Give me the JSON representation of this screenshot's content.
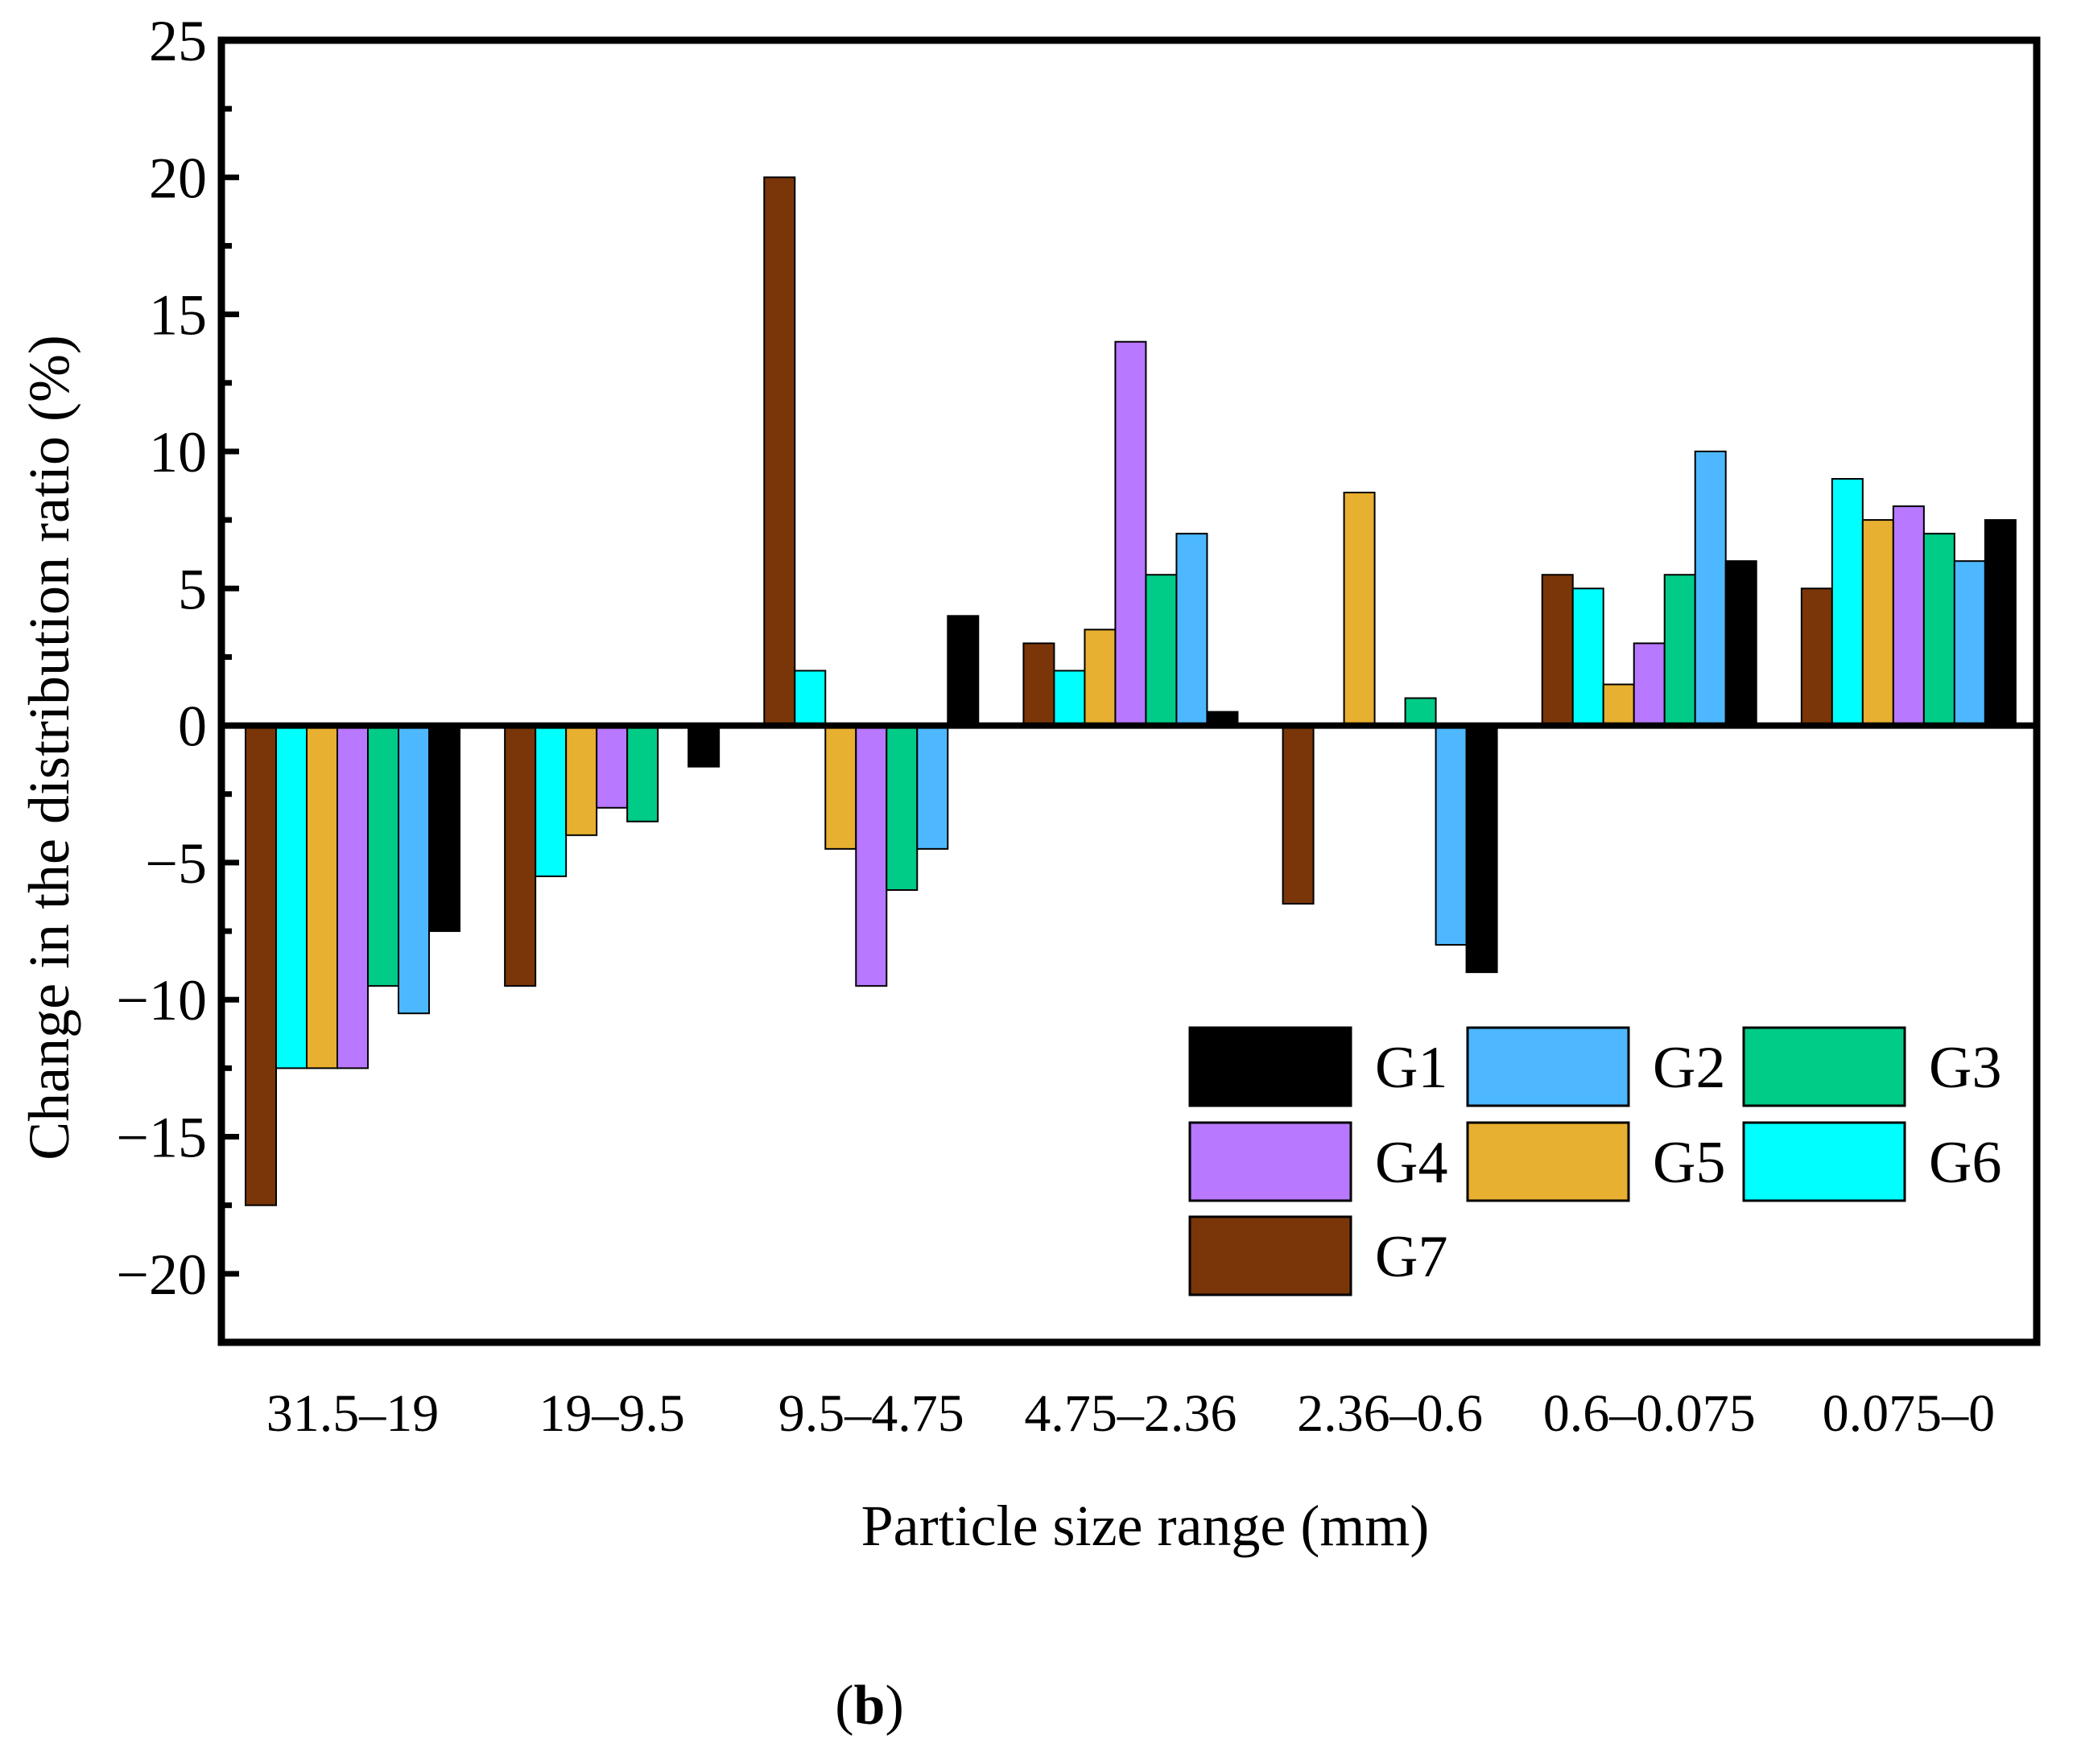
{
  "chart_data": {
    "type": "bar",
    "title": "",
    "xlabel": "Particle size range (mm)",
    "ylabel": "Change in the distribution ratio (%)",
    "ylim": [
      -22.5,
      25
    ],
    "yticks": [
      -20,
      -15,
      -10,
      -5,
      0,
      5,
      10,
      15,
      20,
      25
    ],
    "ytick_labels": [
      "−20",
      "−15",
      "−10",
      "−5",
      "0",
      "5",
      "10",
      "15",
      "20",
      "25"
    ],
    "grid": false,
    "legend_position": "bottom-right",
    "categories": [
      "31.5–19",
      "19–9.5",
      "9.5–4.75",
      "4.75–2.36",
      "2.36–0.6",
      "0.6–0.075",
      "0.075–0"
    ],
    "series": [
      {
        "name": "G7",
        "color": "#7a3608",
        "values": [
          -17.5,
          -9.5,
          20,
          3,
          -6.5,
          5.5,
          5
        ]
      },
      {
        "name": "G6",
        "color": "#00ffff",
        "values": [
          -12.5,
          -5.5,
          2,
          2,
          0,
          5,
          9
        ]
      },
      {
        "name": "G5",
        "color": "#e8b030",
        "values": [
          -12.5,
          -4,
          -4.5,
          3.5,
          8.5,
          1.5,
          7.5
        ]
      },
      {
        "name": "G4",
        "color": "#b878ff",
        "values": [
          -12.5,
          -3,
          -9.5,
          14,
          0,
          3,
          8
        ]
      },
      {
        "name": "G3",
        "color": "#00cc88",
        "values": [
          -9.5,
          -3.5,
          -6,
          5.5,
          1,
          5.5,
          7
        ]
      },
      {
        "name": "G2",
        "color": "#4db8ff",
        "values": [
          -10.5,
          0,
          -4.5,
          7,
          -8,
          10,
          6
        ]
      },
      {
        "name": "G1",
        "color": "#000000",
        "values": [
          -7.5,
          -1.5,
          4,
          0.5,
          -9,
          6,
          7.5
        ]
      }
    ],
    "legend_order": [
      "G1",
      "G2",
      "G3",
      "G4",
      "G5",
      "G6",
      "G7"
    ]
  },
  "panel_label": "b"
}
